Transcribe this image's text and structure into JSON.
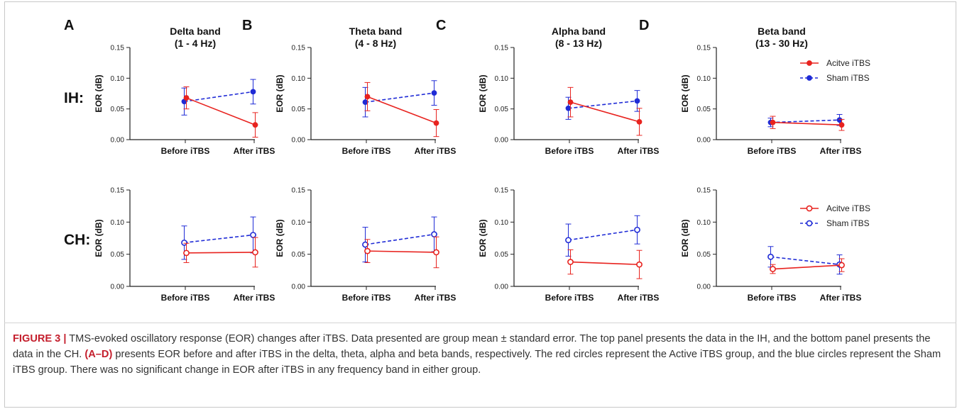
{
  "figure": {
    "panel_letters": [
      "A",
      "B",
      "C",
      "D"
    ],
    "band_titles": [
      [
        "Delta band",
        "(1 - 4 Hz)"
      ],
      [
        "Theta band",
        "(4 - 8 Hz)"
      ],
      [
        "Alpha band",
        "(8 - 13 Hz)"
      ],
      [
        "Beta band",
        "(13 - 30 Hz)"
      ]
    ],
    "row_labels": [
      "IH:",
      "CH:"
    ],
    "legend_top": {
      "active": "Acitve iTBS",
      "sham": "Sham iTBS"
    },
    "legend_bottom": {
      "active": "Acitve iTBS",
      "sham": "Sham iTBS"
    },
    "colors": {
      "active": "#e8231f",
      "sham": "#1f2bd6",
      "axis": "#222222"
    }
  },
  "caption": {
    "label": "FIGURE 3 |",
    "text_1": " TMS-evoked oscillatory response (EOR) changes after iTBS. Data presented are group mean ± standard error. The top panel presents the data in the IH, and the bottom panel presents the data in the CH. ",
    "ref": "(A–D)",
    "text_2": " presents EOR before and after iTBS in the delta, theta, alpha and beta bands, respectively. The red circles represent the Active iTBS group, and the blue circles represent the Sham iTBS group. There was no significant change in EOR after iTBS in any frequency band in either group."
  },
  "chart_data": [
    {
      "type": "line",
      "panel": "A",
      "row": "IH",
      "title": "Delta band (1 - 4 Hz)",
      "ylabel": "EOR (dB)",
      "categories": [
        "Before iTBS",
        "After iTBS"
      ],
      "ylim": [
        0,
        0.15
      ],
      "yticks": [
        "0.00",
        "0.05",
        "0.10",
        "0.15"
      ],
      "series": [
        {
          "name": "Acitve iTBS",
          "values": [
            0.068,
            0.024
          ],
          "errors": [
            0.018,
            0.02
          ]
        },
        {
          "name": "Sham iTBS",
          "values": [
            0.062,
            0.078
          ],
          "errors": [
            0.022,
            0.02
          ]
        }
      ]
    },
    {
      "type": "line",
      "panel": "B",
      "row": "IH",
      "title": "Theta band (4 - 8 Hz)",
      "ylabel": "EOR (dB)",
      "categories": [
        "Before iTBS",
        "After iTBS"
      ],
      "ylim": [
        0,
        0.15
      ],
      "yticks": [
        "0.00",
        "0.05",
        "0.10",
        "0.15"
      ],
      "series": [
        {
          "name": "Acitve iTBS",
          "values": [
            0.07,
            0.027
          ],
          "errors": [
            0.023,
            0.022
          ]
        },
        {
          "name": "Sham iTBS",
          "values": [
            0.061,
            0.076
          ],
          "errors": [
            0.024,
            0.02
          ]
        }
      ]
    },
    {
      "type": "line",
      "panel": "C",
      "row": "IH",
      "title": "Alpha band (8 - 13 Hz)",
      "ylabel": "EOR (dB)",
      "categories": [
        "Before iTBS",
        "After iTBS"
      ],
      "ylim": [
        0,
        0.15
      ],
      "yticks": [
        "0.00",
        "0.05",
        "0.10",
        "0.15"
      ],
      "series": [
        {
          "name": "Acitve iTBS",
          "values": [
            0.061,
            0.029
          ],
          "errors": [
            0.024,
            0.022
          ]
        },
        {
          "name": "Sham iTBS",
          "values": [
            0.051,
            0.063
          ],
          "errors": [
            0.018,
            0.017
          ]
        }
      ]
    },
    {
      "type": "line",
      "panel": "D",
      "row": "IH",
      "title": "Beta band (13 - 30 Hz)",
      "ylabel": "EOR (dB)",
      "categories": [
        "Before iTBS",
        "After iTBS"
      ],
      "ylim": [
        0,
        0.15
      ],
      "yticks": [
        "0.00",
        "0.05",
        "0.10",
        "0.15"
      ],
      "series": [
        {
          "name": "Acitve iTBS",
          "values": [
            0.028,
            0.024
          ],
          "errors": [
            0.01,
            0.009
          ]
        },
        {
          "name": "Sham iTBS",
          "values": [
            0.028,
            0.032
          ],
          "errors": [
            0.007,
            0.009
          ]
        }
      ]
    },
    {
      "type": "line",
      "panel": "A",
      "row": "CH",
      "ylabel": "EOR (dB)",
      "categories": [
        "Before iTBS",
        "After iTBS"
      ],
      "ylim": [
        0,
        0.15
      ],
      "yticks": [
        "0.00",
        "0.05",
        "0.10",
        "0.15"
      ],
      "series": [
        {
          "name": "Acitve iTBS",
          "values": [
            0.052,
            0.053
          ],
          "errors": [
            0.015,
            0.023
          ]
        },
        {
          "name": "Sham iTBS",
          "values": [
            0.068,
            0.08
          ],
          "errors": [
            0.026,
            0.028
          ]
        }
      ]
    },
    {
      "type": "line",
      "panel": "B",
      "row": "CH",
      "ylabel": "EOR (dB)",
      "categories": [
        "Before iTBS",
        "After iTBS"
      ],
      "ylim": [
        0,
        0.15
      ],
      "yticks": [
        "0.00",
        "0.05",
        "0.10",
        "0.15"
      ],
      "series": [
        {
          "name": "Acitve iTBS",
          "values": [
            0.055,
            0.053
          ],
          "errors": [
            0.018,
            0.024
          ]
        },
        {
          "name": "Sham iTBS",
          "values": [
            0.065,
            0.081
          ],
          "errors": [
            0.027,
            0.027
          ]
        }
      ]
    },
    {
      "type": "line",
      "panel": "C",
      "row": "CH",
      "ylabel": "EOR (dB)",
      "categories": [
        "Before iTBS",
        "After iTBS"
      ],
      "ylim": [
        0,
        0.15
      ],
      "yticks": [
        "0.00",
        "0.05",
        "0.10",
        "0.15"
      ],
      "series": [
        {
          "name": "Acitve iTBS",
          "values": [
            0.038,
            0.034
          ],
          "errors": [
            0.019,
            0.022
          ]
        },
        {
          "name": "Sham iTBS",
          "values": [
            0.072,
            0.088
          ],
          "errors": [
            0.025,
            0.022
          ]
        }
      ]
    },
    {
      "type": "line",
      "panel": "D",
      "row": "CH",
      "ylabel": "EOR (dB)",
      "categories": [
        "Before iTBS",
        "After iTBS"
      ],
      "ylim": [
        0,
        0.15
      ],
      "yticks": [
        "0.00",
        "0.05",
        "0.10",
        "0.15"
      ],
      "series": [
        {
          "name": "Acitve iTBS",
          "values": [
            0.027,
            0.033
          ],
          "errors": [
            0.007,
            0.01
          ]
        },
        {
          "name": "Sham iTBS",
          "values": [
            0.046,
            0.034
          ],
          "errors": [
            0.016,
            0.015
          ]
        }
      ]
    }
  ]
}
